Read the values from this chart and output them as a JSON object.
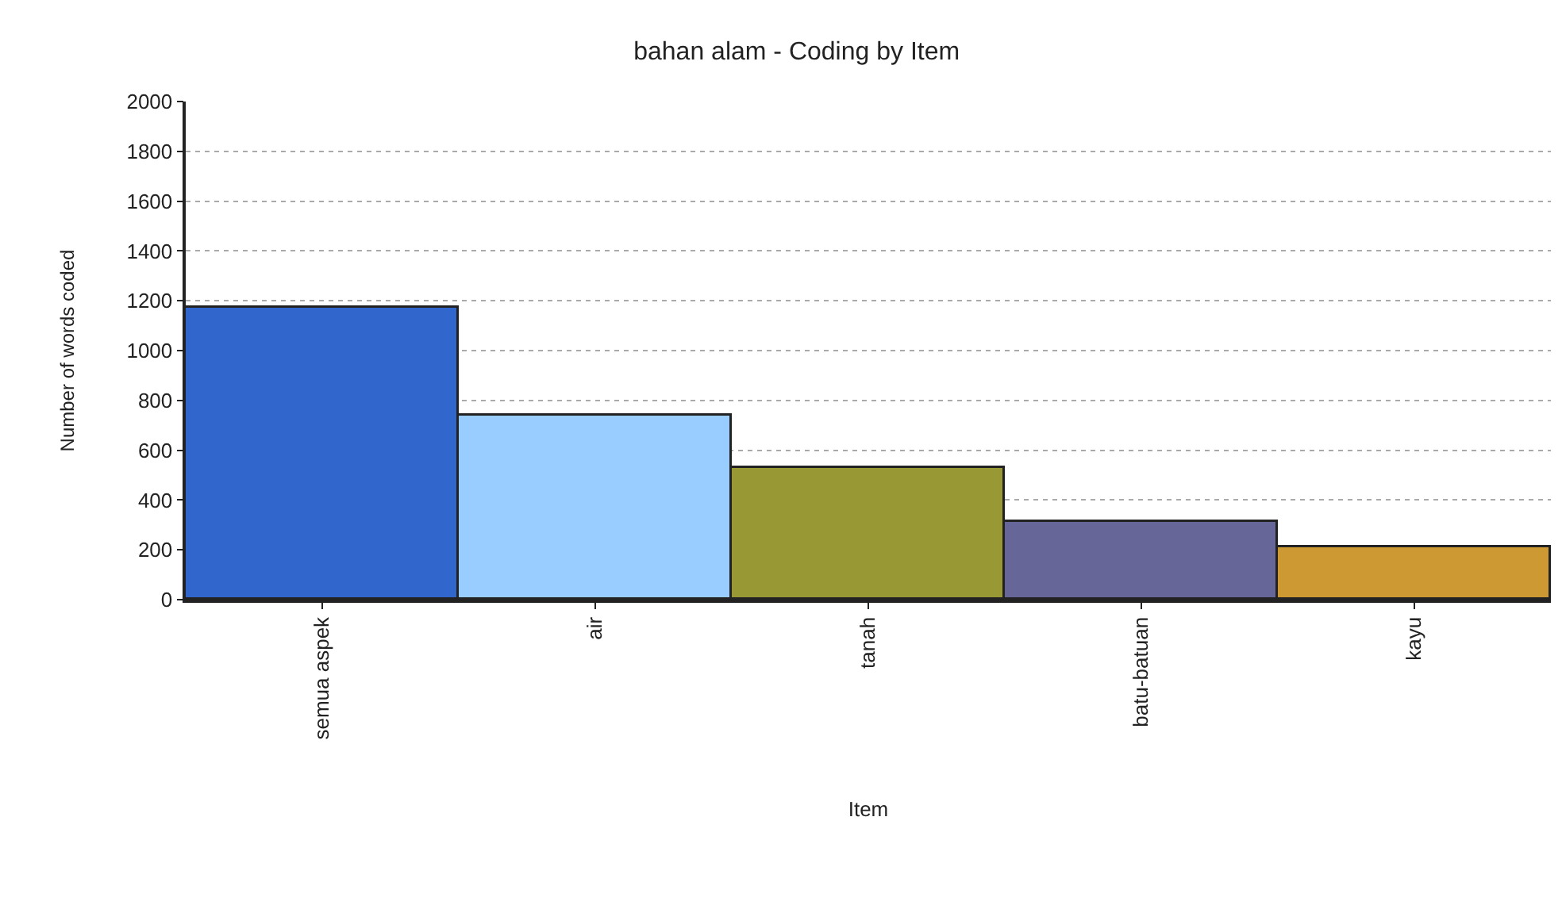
{
  "chart_data": {
    "type": "bar",
    "title": "bahan alam - Coding by Item",
    "xlabel": "Item",
    "ylabel": "Number of words coded",
    "categories": [
      "semua aspek",
      "air",
      "tanah",
      "batu-batuan",
      "kayu"
    ],
    "values": [
      1170,
      740,
      530,
      315,
      210
    ],
    "colors": [
      "#3166cc",
      "#99ccff",
      "#989834",
      "#666699",
      "#cc9933"
    ],
    "ylim": [
      0,
      2000
    ],
    "yticks": [
      0,
      200,
      400,
      600,
      800,
      1000,
      1200,
      1400,
      1600,
      1800,
      2000
    ],
    "grid": "y"
  }
}
